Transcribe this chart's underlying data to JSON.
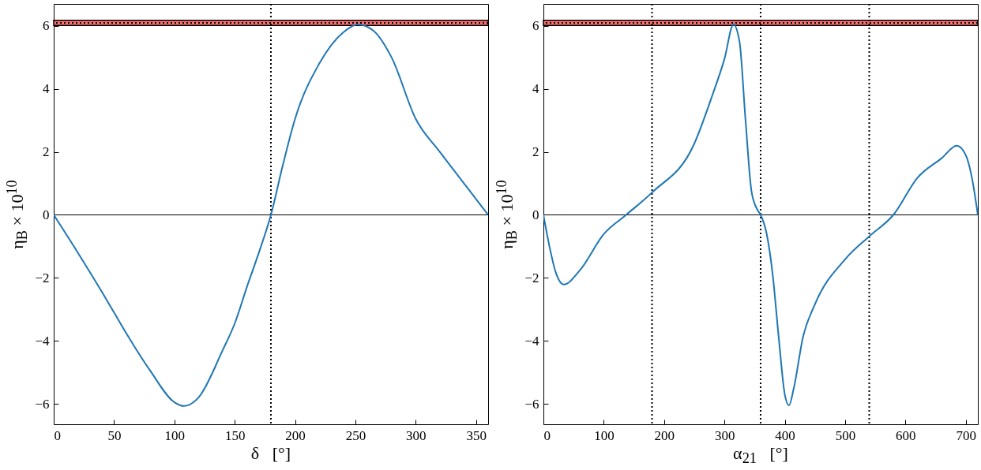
{
  "chart_data": [
    {
      "type": "line",
      "xlabel": "δ   [°]",
      "ylabel": "η$_{B}$ × 10$^{10}$",
      "xlim": [
        0,
        360
      ],
      "xticks": [
        0,
        50,
        100,
        150,
        200,
        250,
        300,
        350
      ],
      "ylim": [
        -6.65,
        6.7
      ],
      "yticks": [
        -6,
        -4,
        -2,
        0,
        2,
        4,
        6
      ],
      "grid": false,
      "marker": "none",
      "line_style": "solid",
      "series": [
        {
          "color": "#1f77b4",
          "x": [
            0,
            20,
            40,
            50,
            60,
            80,
            100,
            108,
            120,
            140,
            150,
            160,
            170,
            180,
            190,
            200,
            220,
            240,
            252,
            265,
            280,
            300,
            320,
            340,
            360
          ],
          "values": [
            0,
            -1.2,
            -2.45,
            -3.1,
            -3.75,
            -4.95,
            -5.95,
            -6.07,
            -5.8,
            -4.3,
            -3.45,
            -2.3,
            -1.2,
            0,
            1.6,
            3.05,
            4.8,
            5.8,
            6.05,
            5.85,
            5.0,
            3.05,
            2.0,
            1.0,
            0
          ]
        }
      ],
      "ref_lines": [
        {
          "axis": "y",
          "value": 0,
          "line_style": "solid",
          "color": "#000000"
        },
        {
          "axis": "x",
          "value": 180,
          "line_style": "dotted",
          "color": "#000000"
        },
        {
          "axis": "y",
          "value": 6.1,
          "line_style": "dotted",
          "color": "#000000"
        }
      ],
      "bands": [
        {
          "axis": "y",
          "from": 6.02,
          "to": 6.18,
          "color": "#ff7070"
        }
      ]
    },
    {
      "type": "line",
      "xlabel": "α$_{21}$   [°]",
      "ylabel": "η$_{B}$ × 10$^{10}$",
      "xlim": [
        0,
        720
      ],
      "xticks": [
        0,
        100,
        200,
        300,
        400,
        500,
        600,
        700
      ],
      "ylim": [
        -6.65,
        6.7
      ],
      "yticks": [
        -6,
        -4,
        -2,
        0,
        2,
        4,
        6
      ],
      "grid": false,
      "marker": "none",
      "line_style": "solid",
      "series": [
        {
          "color": "#1f77b4",
          "x": [
            0,
            10,
            20,
            34,
            60,
            100,
            137,
            180,
            250,
            280,
            300,
            315,
            325,
            335,
            345,
            355,
            360,
            370,
            380,
            390,
            400,
            407,
            415,
            430,
            450,
            500,
            540,
            580,
            620,
            660,
            685,
            700,
            710,
            720
          ],
          "values": [
            0,
            -1.0,
            -1.8,
            -2.21,
            -1.77,
            -0.61,
            0,
            0.71,
            2.26,
            3.8,
            4.95,
            6.05,
            5.5,
            3.0,
            0.73,
            0.15,
            0,
            -0.6,
            -1.9,
            -3.9,
            -5.7,
            -6.05,
            -5.5,
            -3.9,
            -2.84,
            -1.41,
            -0.68,
            0,
            1.18,
            1.8,
            2.2,
            1.9,
            1.2,
            0
          ]
        }
      ],
      "ref_lines": [
        {
          "axis": "y",
          "value": 0,
          "line_style": "solid",
          "color": "#000000"
        },
        {
          "axis": "x",
          "value": 180,
          "line_style": "dotted",
          "color": "#000000"
        },
        {
          "axis": "x",
          "value": 360,
          "line_style": "dotted",
          "color": "#000000"
        },
        {
          "axis": "x",
          "value": 540,
          "line_style": "dotted",
          "color": "#000000"
        },
        {
          "axis": "y",
          "value": 6.1,
          "line_style": "dotted",
          "color": "#000000"
        }
      ],
      "bands": [
        {
          "axis": "y",
          "from": 6.02,
          "to": 6.18,
          "color": "#ff7070"
        }
      ]
    }
  ]
}
